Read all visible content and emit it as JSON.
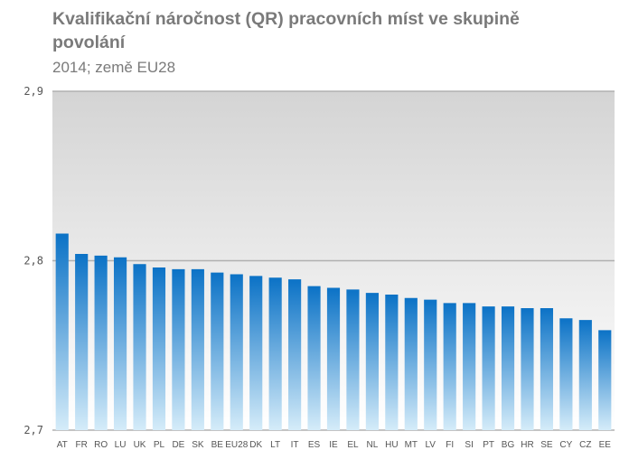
{
  "chart_data": {
    "type": "bar",
    "title": "Kvalifikační náročnost (QR)  pracovních míst ve skupině povolání",
    "subtitle": "2014; země EU28",
    "xlabel": "",
    "ylabel": "",
    "ylim": [
      2.7,
      2.9
    ],
    "yticks": [
      "2,7",
      "2,8",
      "2,9"
    ],
    "grid": true,
    "legend": "none",
    "categories": [
      "AT",
      "FR",
      "RO",
      "LU",
      "UK",
      "PL",
      "DE",
      "SK",
      "BE",
      "EU28",
      "DK",
      "LT",
      "IT",
      "ES",
      "IE",
      "EL",
      "NL",
      "HU",
      "MT",
      "LV",
      "FI",
      "SI",
      "PT",
      "BG",
      "HR",
      "SE",
      "CY",
      "CZ",
      "EE"
    ],
    "values": [
      2.816,
      2.804,
      2.803,
      2.802,
      2.798,
      2.796,
      2.795,
      2.795,
      2.793,
      2.792,
      2.791,
      2.79,
      2.789,
      2.785,
      2.784,
      2.783,
      2.781,
      2.78,
      2.778,
      2.777,
      2.775,
      2.775,
      2.773,
      2.773,
      2.772,
      2.772,
      2.766,
      2.765,
      2.759
    ],
    "colors": {
      "bar_top": "#0b72c6",
      "bar_bottom": "#d5ecf9",
      "plot_bg_top": "#d4d4d4",
      "plot_bg_bottom": "#ffffff",
      "gridline": "#b0b0b0",
      "text": "#7a7a7a"
    }
  }
}
